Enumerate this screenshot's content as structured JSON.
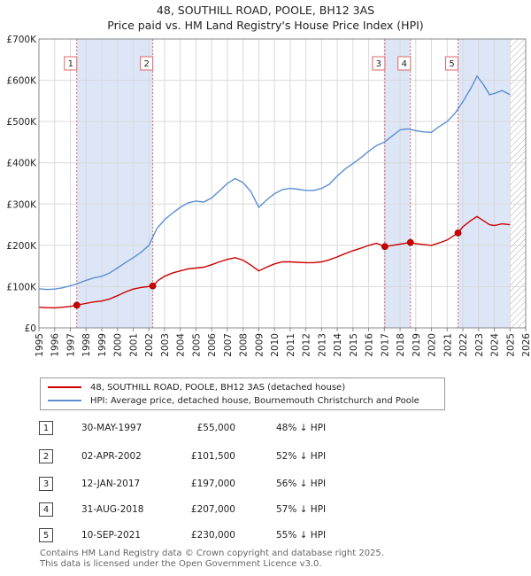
{
  "title_line1": "48, SOUTHILL ROAD, POOLE, BH12 3AS",
  "title_line2": "Price paid vs. HM Land Registry's House Price Index (HPI)",
  "colors": {
    "price": "#cc0000",
    "hpi": "#5b8fd1",
    "shade": "#dde6f7",
    "vline": "#e06666"
  },
  "chart_data": {
    "type": "line",
    "xlim": [
      1995,
      2026
    ],
    "ylim": [
      0,
      700000
    ],
    "x_ticks": [
      "1995",
      "1996",
      "1997",
      "1998",
      "1999",
      "2000",
      "2001",
      "2002",
      "2003",
      "2004",
      "2005",
      "2006",
      "2007",
      "2008",
      "2009",
      "2010",
      "2011",
      "2012",
      "2013",
      "2014",
      "2015",
      "2016",
      "2017",
      "2018",
      "2019",
      "2020",
      "2021",
      "2022",
      "2023",
      "2024",
      "2025",
      "2026"
    ],
    "y_ticks": [
      {
        "value": 0,
        "label": "£0"
      },
      {
        "value": 100000,
        "label": "£100K"
      },
      {
        "value": 200000,
        "label": "£200K"
      },
      {
        "value": 300000,
        "label": "£300K"
      },
      {
        "value": 400000,
        "label": "£400K"
      },
      {
        "value": 500000,
        "label": "£500K"
      },
      {
        "value": 600000,
        "label": "£600K"
      },
      {
        "value": 700000,
        "label": "£700K"
      }
    ],
    "grid": true,
    "series": [
      {
        "name": "48, SOUTHILL ROAD, POOLE, BH12 3AS (detached house)",
        "color": "#cc0000",
        "points": [
          [
            1995.0,
            50000
          ],
          [
            1995.5,
            49000
          ],
          [
            1996.0,
            48500
          ],
          [
            1996.5,
            50000
          ],
          [
            1997.0,
            52000
          ],
          [
            1997.41,
            55000
          ],
          [
            1997.8,
            58000
          ],
          [
            1998.5,
            63000
          ],
          [
            1999.0,
            65000
          ],
          [
            1999.5,
            70000
          ],
          [
            2000.0,
            78000
          ],
          [
            2000.5,
            87000
          ],
          [
            2001.0,
            94000
          ],
          [
            2001.5,
            98000
          ],
          [
            2002.25,
            101500
          ],
          [
            2002.6,
            115000
          ],
          [
            2003.0,
            125000
          ],
          [
            2003.5,
            133000
          ],
          [
            2004.0,
            138000
          ],
          [
            2004.5,
            143000
          ],
          [
            2005.0,
            145000
          ],
          [
            2005.5,
            147000
          ],
          [
            2006.0,
            153000
          ],
          [
            2006.5,
            160000
          ],
          [
            2007.0,
            166000
          ],
          [
            2007.5,
            170000
          ],
          [
            2008.0,
            164000
          ],
          [
            2008.5,
            152000
          ],
          [
            2009.0,
            138000
          ],
          [
            2009.5,
            147000
          ],
          [
            2010.0,
            155000
          ],
          [
            2010.5,
            160000
          ],
          [
            2011.0,
            160000
          ],
          [
            2011.5,
            159000
          ],
          [
            2012.0,
            158000
          ],
          [
            2012.5,
            158000
          ],
          [
            2013.0,
            160000
          ],
          [
            2013.5,
            165000
          ],
          [
            2014.0,
            172000
          ],
          [
            2014.5,
            180000
          ],
          [
            2015.0,
            187000
          ],
          [
            2015.5,
            193000
          ],
          [
            2016.0,
            200000
          ],
          [
            2016.5,
            205000
          ],
          [
            2017.03,
            197000
          ],
          [
            2017.5,
            200000
          ],
          [
            2018.0,
            203000
          ],
          [
            2018.66,
            207000
          ],
          [
            2019.0,
            204000
          ],
          [
            2019.5,
            202000
          ],
          [
            2020.0,
            200000
          ],
          [
            2020.5,
            206000
          ],
          [
            2021.0,
            213000
          ],
          [
            2021.69,
            230000
          ],
          [
            2022.0,
            245000
          ],
          [
            2022.5,
            260000
          ],
          [
            2022.9,
            270000
          ],
          [
            2023.3,
            260000
          ],
          [
            2023.7,
            250000
          ],
          [
            2024.0,
            248000
          ],
          [
            2024.5,
            252000
          ],
          [
            2025.0,
            250000
          ]
        ]
      },
      {
        "name": "HPI: Average price, detached house, Bournemouth Christchurch and Poole",
        "color": "#5b8fd1",
        "points": [
          [
            1995.0,
            95000
          ],
          [
            1995.5,
            93000
          ],
          [
            1996.0,
            94000
          ],
          [
            1996.5,
            97000
          ],
          [
            1997.0,
            102000
          ],
          [
            1997.5,
            108000
          ],
          [
            1998.0,
            115000
          ],
          [
            1998.5,
            121000
          ],
          [
            1999.0,
            125000
          ],
          [
            1999.5,
            133000
          ],
          [
            2000.0,
            145000
          ],
          [
            2000.5,
            158000
          ],
          [
            2001.0,
            170000
          ],
          [
            2001.5,
            183000
          ],
          [
            2002.0,
            200000
          ],
          [
            2002.5,
            240000
          ],
          [
            2003.0,
            262000
          ],
          [
            2003.5,
            278000
          ],
          [
            2004.0,
            292000
          ],
          [
            2004.5,
            303000
          ],
          [
            2005.0,
            307000
          ],
          [
            2005.5,
            305000
          ],
          [
            2006.0,
            315000
          ],
          [
            2006.5,
            332000
          ],
          [
            2007.0,
            350000
          ],
          [
            2007.5,
            362000
          ],
          [
            2008.0,
            352000
          ],
          [
            2008.5,
            330000
          ],
          [
            2009.0,
            292000
          ],
          [
            2009.5,
            310000
          ],
          [
            2010.0,
            325000
          ],
          [
            2010.5,
            335000
          ],
          [
            2011.0,
            338000
          ],
          [
            2011.5,
            336000
          ],
          [
            2012.0,
            333000
          ],
          [
            2012.5,
            333000
          ],
          [
            2013.0,
            338000
          ],
          [
            2013.5,
            348000
          ],
          [
            2014.0,
            368000
          ],
          [
            2014.5,
            385000
          ],
          [
            2015.0,
            398000
          ],
          [
            2015.5,
            412000
          ],
          [
            2016.0,
            428000
          ],
          [
            2016.5,
            442000
          ],
          [
            2017.0,
            450000
          ],
          [
            2017.5,
            465000
          ],
          [
            2018.0,
            480000
          ],
          [
            2018.5,
            482000
          ],
          [
            2019.0,
            478000
          ],
          [
            2019.5,
            475000
          ],
          [
            2020.0,
            474000
          ],
          [
            2020.5,
            488000
          ],
          [
            2021.0,
            500000
          ],
          [
            2021.5,
            520000
          ],
          [
            2022.0,
            548000
          ],
          [
            2022.5,
            580000
          ],
          [
            2022.9,
            610000
          ],
          [
            2023.3,
            590000
          ],
          [
            2023.7,
            565000
          ],
          [
            2024.0,
            568000
          ],
          [
            2024.5,
            575000
          ],
          [
            2025.0,
            565000
          ]
        ]
      }
    ],
    "sales": [
      {
        "label": "1",
        "x": 1997.41,
        "y": 55000
      },
      {
        "label": "2",
        "x": 2002.25,
        "y": 101500
      },
      {
        "label": "3",
        "x": 2017.03,
        "y": 197000
      },
      {
        "label": "4",
        "x": 2018.66,
        "y": 207000
      },
      {
        "label": "5",
        "x": 2021.69,
        "y": 230000
      }
    ],
    "shaded_ranges": [
      [
        1997.41,
        2002.25
      ],
      [
        2017.03,
        2018.66
      ],
      [
        2021.69,
        2025.0
      ]
    ],
    "hatched_from": 2025.0
  },
  "legend": [
    {
      "label": "48, SOUTHILL ROAD, POOLE, BH12 3AS (detached house)",
      "color": "#cc0000"
    },
    {
      "label": "HPI: Average price, detached house, Bournemouth Christchurch and Poole",
      "color": "#5b8fd1"
    }
  ],
  "transactions": [
    {
      "num": "1",
      "date": "30-MAY-1997",
      "price": "£55,000",
      "hpi": "48% ↓ HPI"
    },
    {
      "num": "2",
      "date": "02-APR-2002",
      "price": "£101,500",
      "hpi": "52% ↓ HPI"
    },
    {
      "num": "3",
      "date": "12-JAN-2017",
      "price": "£197,000",
      "hpi": "56% ↓ HPI"
    },
    {
      "num": "4",
      "date": "31-AUG-2018",
      "price": "£207,000",
      "hpi": "57% ↓ HPI"
    },
    {
      "num": "5",
      "date": "10-SEP-2021",
      "price": "£230,000",
      "hpi": "55% ↓ HPI"
    }
  ],
  "footer_line1": "Contains HM Land Registry data © Crown copyright and database right 2025.",
  "footer_line2": "This data is licensed under the Open Government Licence v3.0."
}
